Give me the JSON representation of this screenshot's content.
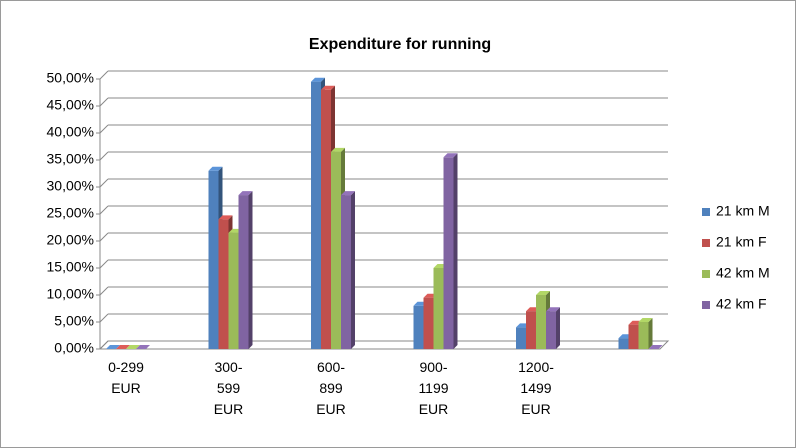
{
  "chart_data": {
    "type": "bar3d",
    "title": "Expenditure for running",
    "categories": [
      "0-299\nEUR",
      "300-\n599\nEUR",
      "600-\n899\nEUR",
      "900-\n1199\nEUR",
      "1200-\n1499\nEUR",
      null
    ],
    "series": [
      {
        "name": "21 km M",
        "color": "#4f81bd",
        "values": [
          0,
          33,
          49.5,
          8,
          4,
          2
        ]
      },
      {
        "name": "21 km F",
        "color": "#c0504d",
        "values": [
          0,
          24,
          48,
          9.5,
          7,
          4.5
        ]
      },
      {
        "name": "42 km M",
        "color": "#9bbb59",
        "values": [
          0,
          21.5,
          36.5,
          15,
          10,
          5
        ]
      },
      {
        "name": "42 km F",
        "color": "#8064a2",
        "values": [
          0,
          28.5,
          28.5,
          35.5,
          7,
          0
        ]
      }
    ],
    "ylim": [
      0,
      50
    ],
    "yticks": [
      {
        "value": 0,
        "label": "0,00%"
      },
      {
        "value": 5,
        "label": "5,00%"
      },
      {
        "value": 10,
        "label": "10,00%"
      },
      {
        "value": 15,
        "label": "15,00%"
      },
      {
        "value": 20,
        "label": "20,00%"
      },
      {
        "value": 25,
        "label": "25,00%"
      },
      {
        "value": 30,
        "label": "30,00%"
      },
      {
        "value": 35,
        "label": "35,00%"
      },
      {
        "value": 40,
        "label": "40,00%"
      },
      {
        "value": 45,
        "label": "45,00%"
      },
      {
        "value": 50,
        "label": "50,00%"
      }
    ],
    "grid": true,
    "legend": "right"
  }
}
